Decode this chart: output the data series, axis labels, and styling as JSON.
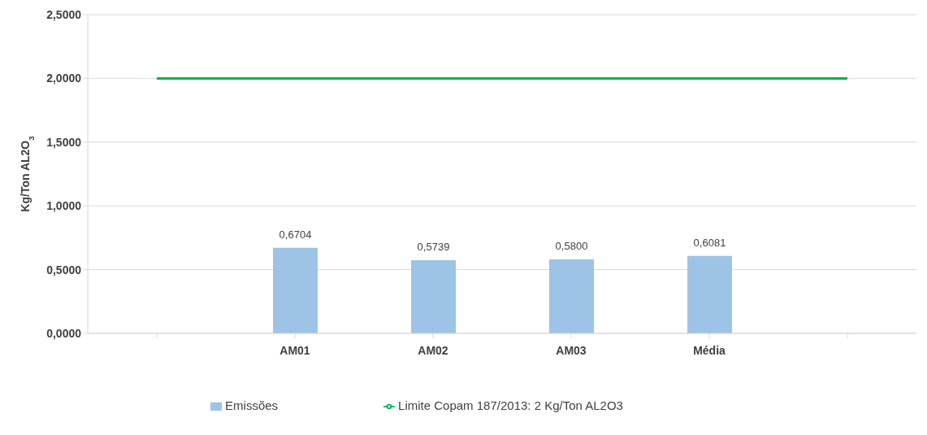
{
  "chart_data": {
    "type": "bar",
    "ylabel": "Kg/Ton AL2O$_{3}$",
    "categories": [
      null,
      "AM01",
      "AM02",
      "AM03",
      "Média",
      null
    ],
    "series": [
      {
        "name": "Emissões",
        "color": "#9dc3e6",
        "values": [
          null,
          0.6704,
          0.5739,
          0.58,
          0.6081,
          null
        ],
        "value_labels": [
          null,
          "0,6704",
          "0,5739",
          "0,5800",
          "0,6081",
          null
        ]
      },
      {
        "name": "Limite Copam 187/2013: 2 Kg/Ton AL2O3",
        "type": "line",
        "color": "#00b050",
        "values": [
          2,
          2,
          2,
          2,
          2,
          2
        ]
      }
    ],
    "ylim": [
      0,
      2.5
    ],
    "yticks": [
      {
        "value": 0,
        "label": "0,0000"
      },
      {
        "value": 0.5,
        "label": "0,5000"
      },
      {
        "value": 1,
        "label": "1,0000"
      },
      {
        "value": 1.5,
        "label": "1,5000"
      },
      {
        "value": 2,
        "label": "2,0000"
      },
      {
        "value": 2.5,
        "label": "2,5000"
      }
    ],
    "grid": "y",
    "legend": "bottom",
    "marker": "none"
  }
}
